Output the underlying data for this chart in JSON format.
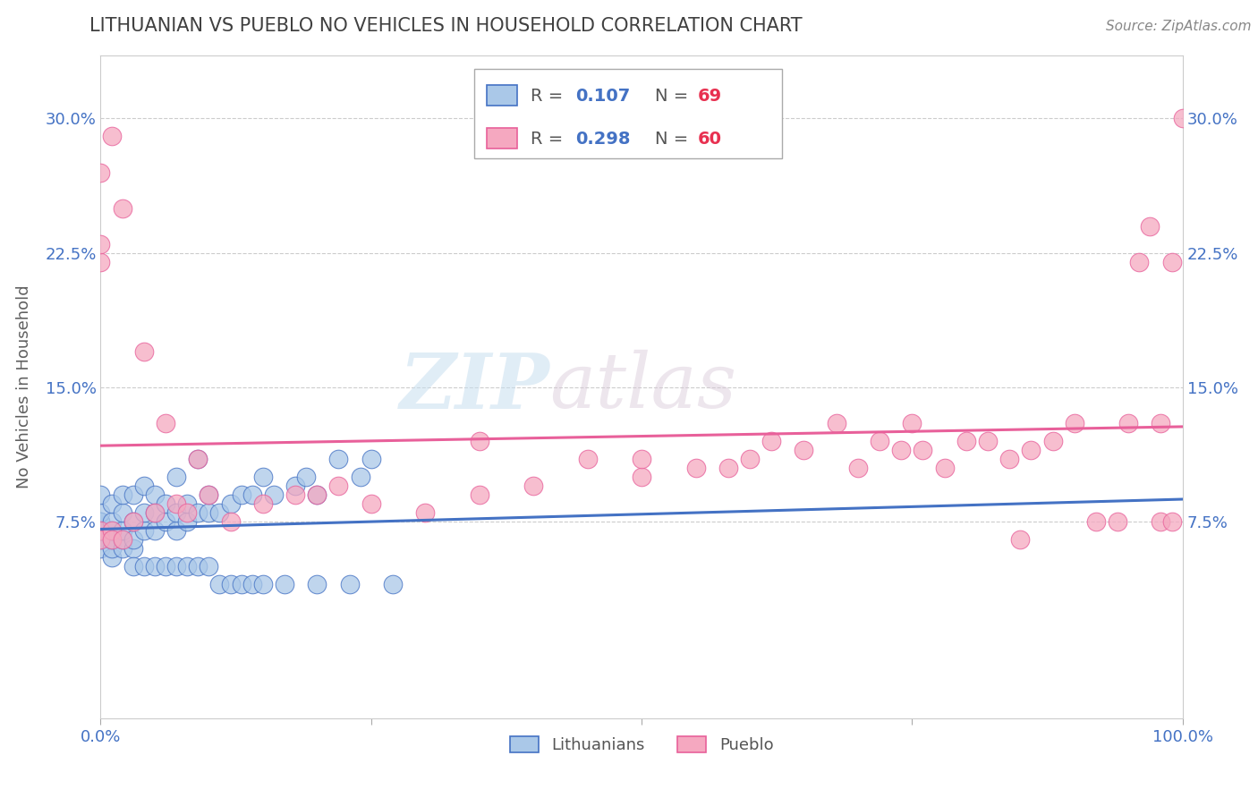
{
  "title": "LITHUANIAN VS PUEBLO NO VEHICLES IN HOUSEHOLD CORRELATION CHART",
  "source": "Source: ZipAtlas.com",
  "ylabel": "No Vehicles in Household",
  "xlim": [
    0,
    1.0
  ],
  "ylim": [
    -0.035,
    0.335
  ],
  "yticks": [
    0.075,
    0.15,
    0.225,
    0.3
  ],
  "ytick_labels": [
    "7.5%",
    "15.0%",
    "22.5%",
    "30.0%"
  ],
  "r_lithuanian": 0.107,
  "n_lithuanian": 69,
  "r_pueblo": 0.298,
  "n_pueblo": 60,
  "color_lithuanian": "#aac8e8",
  "color_pueblo": "#f5a8c0",
  "line_color_lithuanian": "#4472c4",
  "line_color_pueblo": "#e8609a",
  "watermark_zip": "ZIP",
  "watermark_atlas": "atlas",
  "background_color": "#ffffff",
  "grid_color": "#cccccc",
  "title_color": "#404040",
  "axis_label_color": "#606060",
  "tick_label_color": "#4472c4",
  "scatter_lithuanian_x": [
    0.0,
    0.0,
    0.0,
    0.0,
    0.0,
    0.0,
    0.0,
    0.0,
    0.01,
    0.01,
    0.01,
    0.01,
    0.01,
    0.01,
    0.02,
    0.02,
    0.02,
    0.02,
    0.02,
    0.03,
    0.03,
    0.03,
    0.03,
    0.04,
    0.04,
    0.04,
    0.05,
    0.05,
    0.05,
    0.06,
    0.06,
    0.07,
    0.07,
    0.07,
    0.08,
    0.08,
    0.09,
    0.09,
    0.1,
    0.1,
    0.11,
    0.12,
    0.13,
    0.14,
    0.15,
    0.16,
    0.18,
    0.19,
    0.2,
    0.22,
    0.24,
    0.25,
    0.03,
    0.04,
    0.05,
    0.06,
    0.07,
    0.08,
    0.09,
    0.1,
    0.11,
    0.12,
    0.13,
    0.14,
    0.15,
    0.17,
    0.2,
    0.23,
    0.27
  ],
  "scatter_lithuanian_y": [
    0.06,
    0.065,
    0.07,
    0.07,
    0.075,
    0.075,
    0.08,
    0.09,
    0.055,
    0.06,
    0.065,
    0.07,
    0.075,
    0.085,
    0.06,
    0.065,
    0.07,
    0.08,
    0.09,
    0.06,
    0.065,
    0.075,
    0.09,
    0.07,
    0.08,
    0.095,
    0.07,
    0.08,
    0.09,
    0.075,
    0.085,
    0.07,
    0.08,
    0.1,
    0.075,
    0.085,
    0.08,
    0.11,
    0.08,
    0.09,
    0.08,
    0.085,
    0.09,
    0.09,
    0.1,
    0.09,
    0.095,
    0.1,
    0.09,
    0.11,
    0.1,
    0.11,
    0.05,
    0.05,
    0.05,
    0.05,
    0.05,
    0.05,
    0.05,
    0.05,
    0.04,
    0.04,
    0.04,
    0.04,
    0.04,
    0.04,
    0.04,
    0.04,
    0.04
  ],
  "scatter_pueblo_x": [
    0.0,
    0.0,
    0.0,
    0.0,
    0.01,
    0.01,
    0.02,
    0.03,
    0.05,
    0.07,
    0.08,
    0.1,
    0.12,
    0.15,
    0.18,
    0.2,
    0.22,
    0.25,
    0.3,
    0.35,
    0.4,
    0.45,
    0.5,
    0.55,
    0.58,
    0.6,
    0.62,
    0.65,
    0.68,
    0.7,
    0.72,
    0.74,
    0.76,
    0.78,
    0.8,
    0.82,
    0.84,
    0.86,
    0.88,
    0.9,
    0.92,
    0.94,
    0.95,
    0.96,
    0.97,
    0.98,
    0.98,
    0.99,
    0.99,
    1.0,
    0.0,
    0.01,
    0.02,
    0.04,
    0.06,
    0.09,
    0.35,
    0.5,
    0.75,
    0.85
  ],
  "scatter_pueblo_y": [
    0.22,
    0.23,
    0.07,
    0.065,
    0.07,
    0.065,
    0.065,
    0.075,
    0.08,
    0.085,
    0.08,
    0.09,
    0.075,
    0.085,
    0.09,
    0.09,
    0.095,
    0.085,
    0.08,
    0.09,
    0.095,
    0.11,
    0.1,
    0.105,
    0.105,
    0.11,
    0.12,
    0.115,
    0.13,
    0.105,
    0.12,
    0.115,
    0.115,
    0.105,
    0.12,
    0.12,
    0.11,
    0.115,
    0.12,
    0.13,
    0.075,
    0.075,
    0.13,
    0.22,
    0.24,
    0.075,
    0.13,
    0.22,
    0.075,
    0.3,
    0.27,
    0.29,
    0.25,
    0.17,
    0.13,
    0.11,
    0.12,
    0.11,
    0.13,
    0.065
  ]
}
